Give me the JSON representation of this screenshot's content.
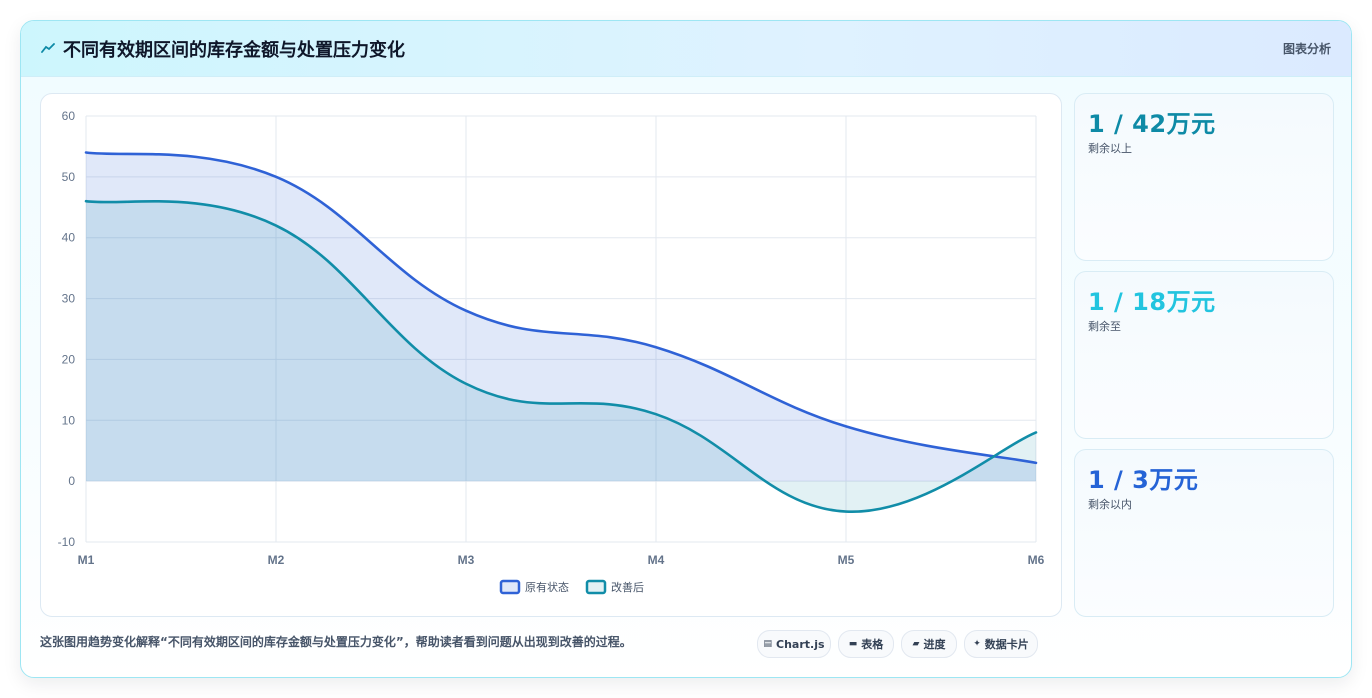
{
  "header": {
    "title": "不同有效期区间的库存金额与处置压力变化",
    "link_label": "图表分析",
    "icon": "trend-icon"
  },
  "stats": [
    {
      "value": "1 / 42万元",
      "label": "剩余以上",
      "color": "#0e8aa6"
    },
    {
      "value": "1 / 18万元",
      "label": "剩余至",
      "color": "#22c4df"
    },
    {
      "value": "1 / 3万元",
      "label": "剩余以内",
      "color": "#2563d6"
    }
  ],
  "footer": {
    "description": "这张图用趋势变化解释“不同有效期区间的库存金额与处置压力变化”，帮助读者看到问题从出现到改善的过程。",
    "chips": [
      {
        "label": "Chart.js",
        "icon": "chart-icon"
      },
      {
        "label": "表格",
        "icon": "table-icon"
      },
      {
        "label": "进度",
        "icon": "progress-icon"
      },
      {
        "label": "数据卡片",
        "icon": "card-icon"
      }
    ]
  },
  "chart_data": {
    "type": "area",
    "categories": [
      "M1",
      "M2",
      "M3",
      "M4",
      "M5",
      "M6"
    ],
    "ylim": [
      -10,
      60
    ],
    "yticks": [
      60,
      50,
      40,
      30,
      20,
      10,
      0,
      -10
    ],
    "grid": true,
    "legend_position": "bottom",
    "series": [
      {
        "name": "原有状态",
        "values": [
          54,
          50,
          28,
          22,
          9,
          3
        ],
        "color": "#2f62d6",
        "fill": "rgba(47,98,214,0.15)"
      },
      {
        "name": "改善后",
        "values": [
          46,
          42,
          16,
          11,
          -5,
          8
        ],
        "color": "#118da8",
        "fill": "rgba(17,141,168,0.12)"
      }
    ]
  }
}
